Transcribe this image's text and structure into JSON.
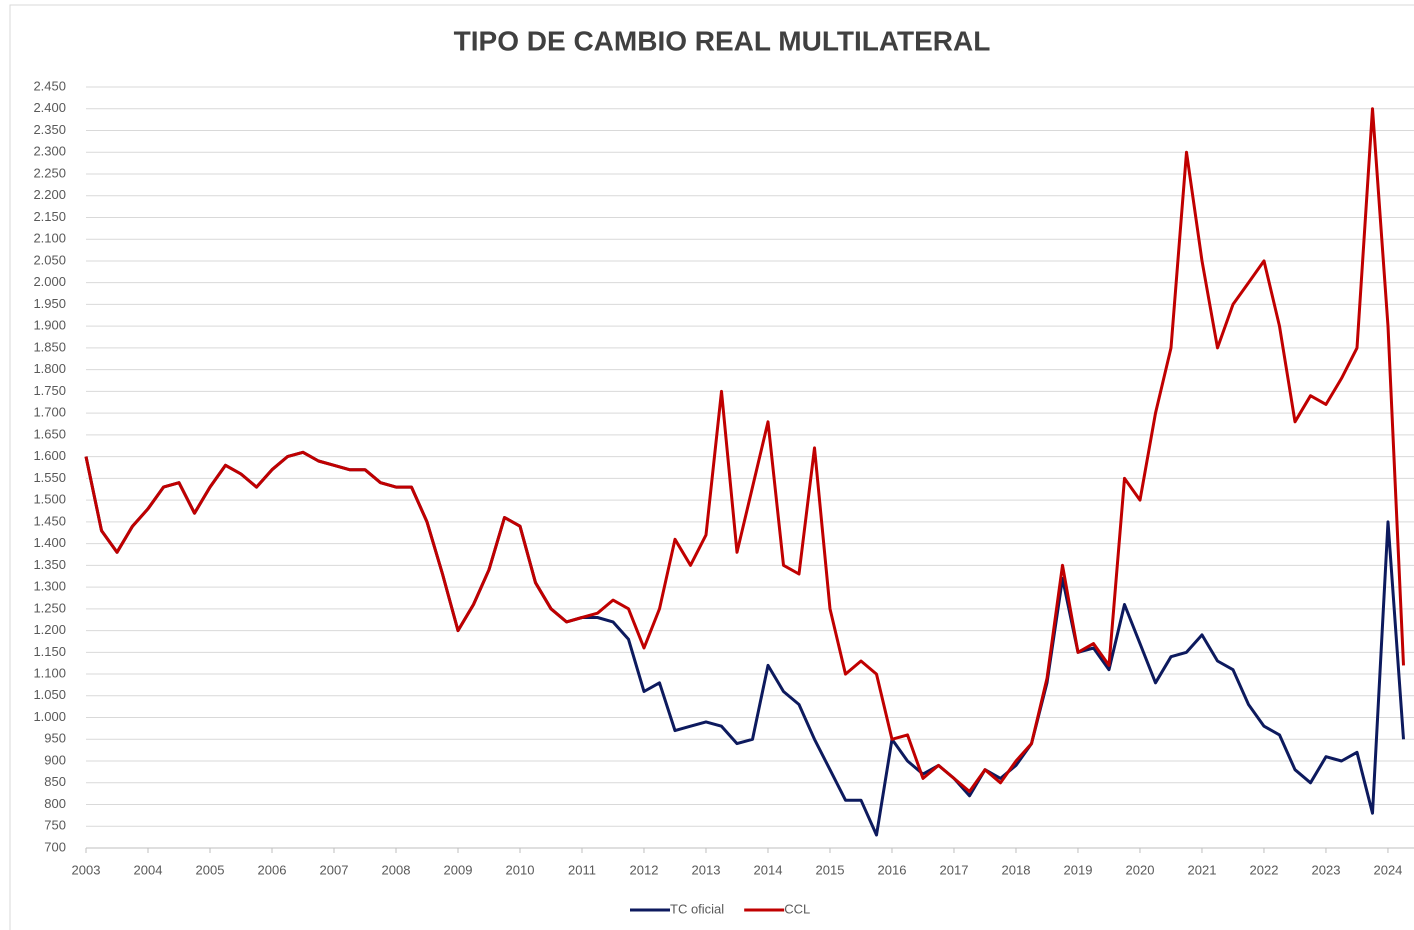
{
  "chart_data": {
    "type": "line",
    "title": "TIPO DE CAMBIO REAL MULTILATERAL",
    "x": [
      2003,
      2003.25,
      2003.5,
      2003.75,
      2004,
      2004.25,
      2004.5,
      2004.75,
      2005,
      2005.25,
      2005.5,
      2005.75,
      2006,
      2006.25,
      2006.5,
      2006.75,
      2007,
      2007.25,
      2007.5,
      2007.75,
      2008,
      2008.25,
      2008.5,
      2008.75,
      2009,
      2009.25,
      2009.5,
      2009.75,
      2010,
      2010.25,
      2010.5,
      2010.75,
      2011,
      2011.25,
      2011.5,
      2011.75,
      2012,
      2012.25,
      2012.5,
      2012.75,
      2013,
      2013.25,
      2013.5,
      2013.75,
      2014,
      2014.25,
      2014.5,
      2014.75,
      2015,
      2015.25,
      2015.5,
      2015.75,
      2016,
      2016.25,
      2016.5,
      2016.75,
      2017,
      2017.25,
      2017.5,
      2017.75,
      2018,
      2018.25,
      2018.5,
      2018.75,
      2019,
      2019.25,
      2019.5,
      2019.75,
      2020,
      2020.25,
      2020.5,
      2020.75,
      2021,
      2021.25,
      2021.5,
      2021.75,
      2022,
      2022.25,
      2022.5,
      2022.75,
      2023,
      2023.25,
      2023.5,
      2023.75,
      2024,
      2024.25
    ],
    "series": [
      {
        "name": "TC oficial",
        "color": "#0d1a5e",
        "values": [
          1600,
          1430,
          1380,
          1440,
          1480,
          1530,
          1540,
          1470,
          1530,
          1580,
          1560,
          1530,
          1570,
          1600,
          1610,
          1590,
          1580,
          1570,
          1570,
          1540,
          1530,
          1530,
          1450,
          1330,
          1200,
          1260,
          1340,
          1460,
          1440,
          1310,
          1250,
          1220,
          1230,
          1230,
          1220,
          1180,
          1060,
          1080,
          970,
          980,
          990,
          980,
          940,
          950,
          1120,
          1060,
          1030,
          950,
          880,
          810,
          810,
          730,
          950,
          900,
          870,
          890,
          860,
          820,
          880,
          860,
          890,
          940,
          1080,
          1320,
          1150,
          1160,
          1110,
          1260,
          1170,
          1080,
          1140,
          1150,
          1190,
          1130,
          1110,
          1030,
          980,
          960,
          880,
          850,
          910,
          900,
          920,
          780,
          1450,
          950
        ]
      },
      {
        "name": "CCL",
        "color": "#c00000",
        "values": [
          1600,
          1430,
          1380,
          1440,
          1480,
          1530,
          1540,
          1470,
          1530,
          1580,
          1560,
          1530,
          1570,
          1600,
          1610,
          1590,
          1580,
          1570,
          1570,
          1540,
          1530,
          1530,
          1450,
          1330,
          1200,
          1260,
          1340,
          1460,
          1440,
          1310,
          1250,
          1220,
          1230,
          1240,
          1270,
          1250,
          1160,
          1250,
          1410,
          1350,
          1420,
          1750,
          1380,
          1530,
          1680,
          1350,
          1330,
          1620,
          1250,
          1100,
          1130,
          1100,
          950,
          960,
          860,
          890,
          860,
          830,
          880,
          850,
          900,
          940,
          1090,
          1350,
          1150,
          1170,
          1120,
          1550,
          1500,
          1700,
          1850,
          2300,
          2050,
          1850,
          1950,
          2000,
          2050,
          1900,
          1680,
          1740,
          1720,
          1780,
          1850,
          2400,
          1900,
          1120
        ]
      }
    ],
    "xlim": [
      2003,
      2024.42
    ],
    "xticks": [
      2003,
      2004,
      2005,
      2006,
      2007,
      2008,
      2009,
      2010,
      2011,
      2012,
      2013,
      2014,
      2015,
      2016,
      2017,
      2018,
      2019,
      2020,
      2021,
      2022,
      2023,
      2024
    ],
    "ylim": [
      700,
      2450
    ],
    "yticks": [
      700,
      750,
      800,
      850,
      900,
      950,
      {
        "value": 1000,
        "label": "1.000"
      },
      {
        "value": 1050,
        "label": "1.050"
      },
      {
        "value": 1100,
        "label": "1.100"
      },
      {
        "value": 1150,
        "label": "1.150"
      },
      {
        "value": 1200,
        "label": "1.200"
      },
      {
        "value": 1250,
        "label": "1.250"
      },
      {
        "value": 1300,
        "label": "1.300"
      },
      {
        "value": 1350,
        "label": "1.350"
      },
      {
        "value": 1400,
        "label": "1.400"
      },
      {
        "value": 1450,
        "label": "1.450"
      },
      {
        "value": 1500,
        "label": "1.500"
      },
      {
        "value": 1550,
        "label": "1.550"
      },
      {
        "value": 1600,
        "label": "1.600"
      },
      {
        "value": 1650,
        "label": "1.650"
      },
      {
        "value": 1700,
        "label": "1.700"
      },
      {
        "value": 1750,
        "label": "1.750"
      },
      {
        "value": 1800,
        "label": "1.800"
      },
      {
        "value": 1850,
        "label": "1.850"
      },
      {
        "value": 1900,
        "label": "1.900"
      },
      {
        "value": 1950,
        "label": "1.950"
      },
      {
        "value": 2000,
        "label": "2.000"
      },
      {
        "value": 2050,
        "label": "2.050"
      },
      {
        "value": 2100,
        "label": "2.100"
      },
      {
        "value": 2150,
        "label": "2.150"
      },
      {
        "value": 2200,
        "label": "2.200"
      },
      {
        "value": 2250,
        "label": "2.250"
      },
      {
        "value": 2300,
        "label": "2.300"
      },
      {
        "value": 2350,
        "label": "2.350"
      },
      {
        "value": 2400,
        "label": "2.400"
      },
      {
        "value": 2450,
        "label": "2.450"
      }
    ],
    "grid": true,
    "legend": "bottom"
  }
}
